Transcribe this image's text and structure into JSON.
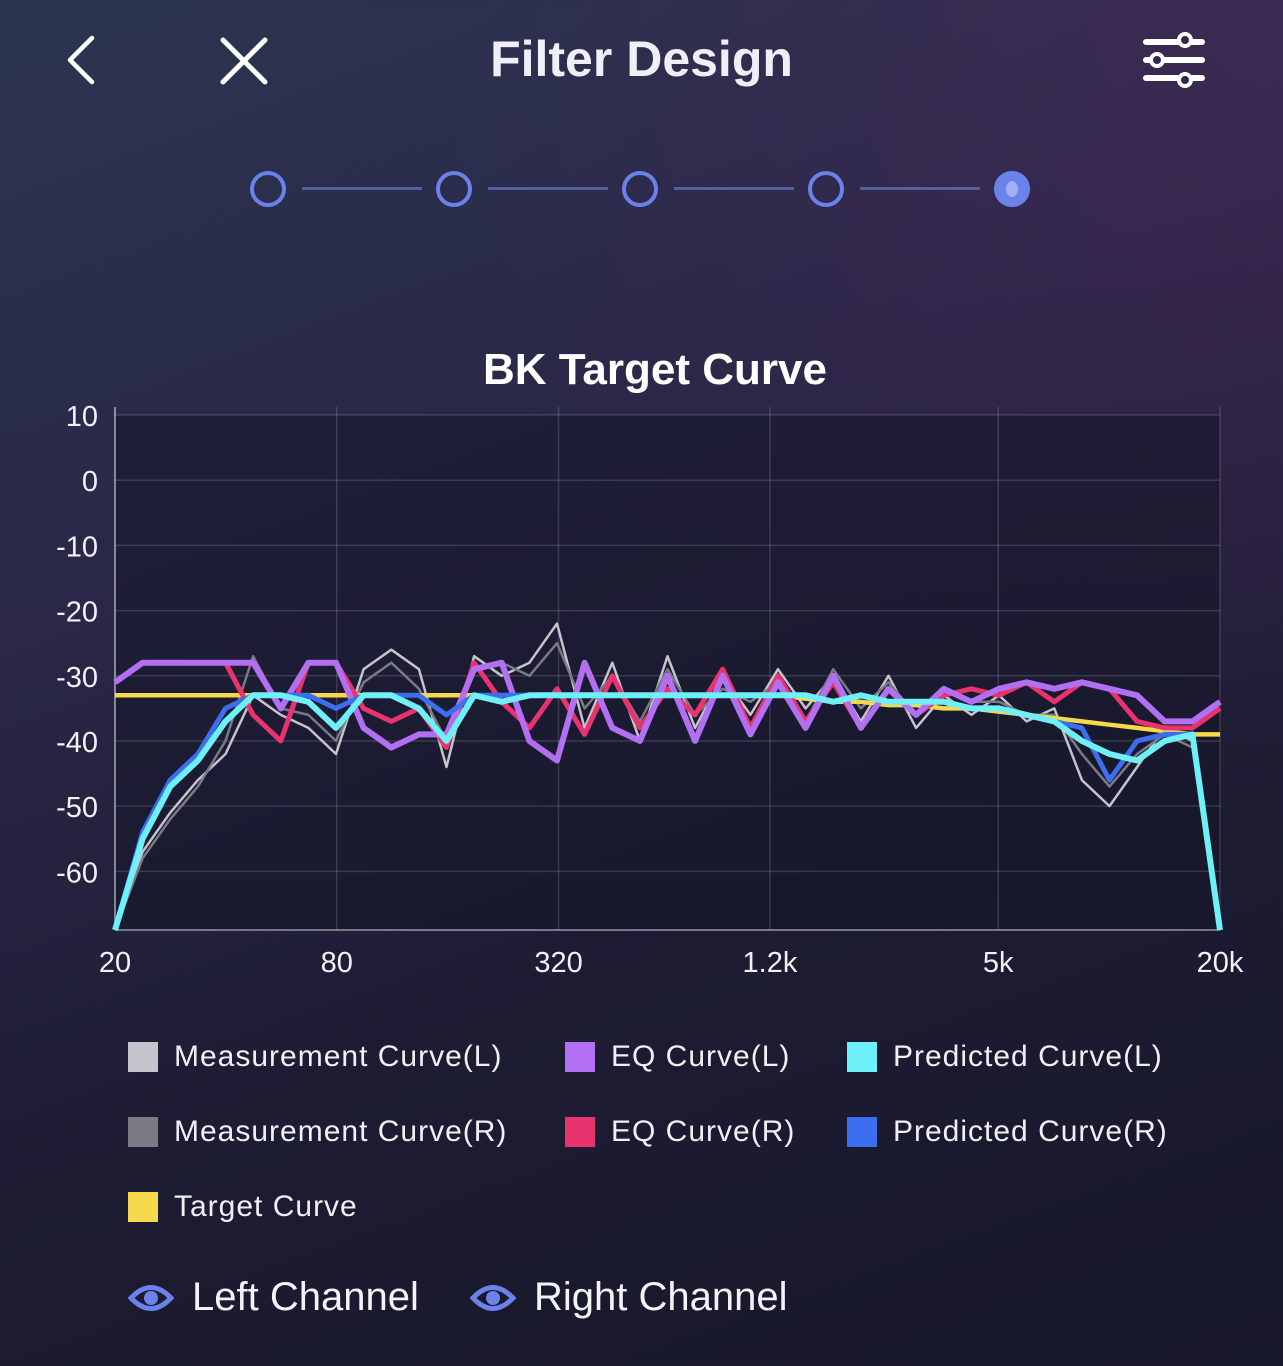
{
  "header": {
    "title": "Filter Design",
    "back_icon": "chevron-left-icon",
    "close_icon": "close-icon",
    "settings_icon": "sliders-icon"
  },
  "stepper": {
    "total_steps": 5,
    "current_step": 5
  },
  "chart_data": {
    "type": "line",
    "title": "BK Target Curve",
    "xscale": "log",
    "xlim": [
      20,
      20000
    ],
    "ylim": [
      -69,
      10
    ],
    "xticks": [
      20,
      80,
      320,
      1200,
      5000,
      20000
    ],
    "xtick_labels": [
      "20",
      "80",
      "320",
      "1.2k",
      "5k",
      "20k"
    ],
    "yticks": [
      10,
      0,
      -10,
      -20,
      -30,
      -40,
      -50,
      -60
    ],
    "ytick_labels": [
      "10",
      "0",
      "-10",
      "-20",
      "-30",
      "-40",
      "-50",
      "-60"
    ],
    "grid": true,
    "x_note": "41 log-spaced frequencies from 20 Hz to 20 kHz",
    "series": [
      {
        "name": "Measurement Curve(L)",
        "color": "#c4c4cc",
        "values": [
          -70,
          -57,
          -51,
          -46,
          -42,
          -33,
          -36,
          -38,
          -42,
          -29,
          -26,
          -29,
          -44,
          -27,
          -30,
          -28,
          -22,
          -38,
          -28,
          -40,
          -27,
          -38,
          -30,
          -36,
          -29,
          -35,
          -30,
          -37,
          -30,
          -38,
          -33,
          -36,
          -33,
          -37,
          -35,
          -46,
          -50,
          -44,
          -38,
          -40,
          -70
        ]
      },
      {
        "name": "Measurement Curve(R)",
        "color": "#7a7a84",
        "values": [
          -70,
          -58,
          -52,
          -47,
          -40,
          -27,
          -35,
          -36,
          -40,
          -31,
          -28,
          -32,
          -40,
          -29,
          -28,
          -30,
          -25,
          -35,
          -30,
          -37,
          -29,
          -36,
          -32,
          -34,
          -31,
          -37,
          -29,
          -35,
          -31,
          -36,
          -32,
          -34,
          -34,
          -36,
          -36,
          -42,
          -47,
          -42,
          -39,
          -41,
          -70
        ]
      },
      {
        "name": "EQ Curve(L)",
        "color": "#b36ff2",
        "values": [
          -31,
          -28,
          -28,
          -28,
          -28,
          -28,
          -35,
          -28,
          -28,
          -38,
          -41,
          -39,
          -39,
          -29,
          -28,
          -40,
          -43,
          -28,
          -38,
          -40,
          -30,
          -40,
          -30,
          -39,
          -31,
          -38,
          -30,
          -38,
          -32,
          -36,
          -32,
          -34,
          -32,
          -31,
          -32,
          -31,
          -32,
          -33,
          -37,
          -37,
          -34
        ]
      },
      {
        "name": "EQ Curve(R)",
        "color": "#e8336f",
        "values": [
          -31,
          -28,
          -28,
          -28,
          -28,
          -36,
          -40,
          -28,
          -28,
          -35,
          -37,
          -35,
          -41,
          -28,
          -34,
          -38,
          -32,
          -39,
          -30,
          -38,
          -32,
          -36,
          -29,
          -38,
          -30,
          -37,
          -31,
          -38,
          -32,
          -36,
          -33,
          -32,
          -33,
          -31,
          -34,
          -31,
          -32,
          -37,
          -38,
          -38,
          -35
        ]
      },
      {
        "name": "Predicted Curve(L)",
        "color": "#6ef0f8",
        "values": [
          -70,
          -55,
          -47,
          -43,
          -37,
          -33,
          -33,
          -34,
          -38,
          -33,
          -33,
          -35,
          -40,
          -33,
          -34,
          -33,
          -33,
          -33,
          -33,
          -33,
          -33,
          -33,
          -33,
          -33,
          -33,
          -33,
          -34,
          -33,
          -34,
          -34,
          -34,
          -35,
          -35,
          -36,
          -37,
          -40,
          -42,
          -43,
          -40,
          -39,
          -70
        ]
      },
      {
        "name": "Predicted Curve(R)",
        "color": "#3d6ef0",
        "values": [
          -70,
          -54,
          -46,
          -42,
          -35,
          -33,
          -33,
          -33,
          -35,
          -33,
          -33,
          -33,
          -36,
          -33,
          -33,
          -33,
          -33,
          -33,
          -33,
          -33,
          -33,
          -33,
          -33,
          -33,
          -33,
          -33,
          -34,
          -33,
          -34,
          -34,
          -34,
          -35,
          -35,
          -36,
          -37,
          -38,
          -46,
          -40,
          -39,
          -39,
          -70
        ]
      },
      {
        "name": "Target Curve",
        "color": "#f6d84c",
        "values": [
          -33,
          -33,
          -33,
          -33,
          -33,
          -33,
          -33,
          -33,
          -33,
          -33,
          -33,
          -33,
          -33,
          -33,
          -33,
          -33,
          -33,
          -33,
          -33,
          -33,
          -33,
          -33,
          -33,
          -33,
          -33,
          -33.5,
          -34,
          -34,
          -34.5,
          -34.5,
          -35,
          -35,
          -35.5,
          -36,
          -36.5,
          -37,
          -37.5,
          -38,
          -38.5,
          -39,
          -39
        ]
      }
    ]
  },
  "legend": [
    {
      "label": "Measurement Curve(L)",
      "color": "#c4c4cc"
    },
    {
      "label": "EQ Curve(L)",
      "color": "#b36ff2"
    },
    {
      "label": "Predicted Curve(L)",
      "color": "#6ef0f8"
    },
    {
      "label": "Measurement Curve(R)",
      "color": "#7a7a84"
    },
    {
      "label": "EQ Curve(R)",
      "color": "#e8336f"
    },
    {
      "label": "Predicted Curve(R)",
      "color": "#3d6ef0"
    },
    {
      "label": "Target Curve",
      "color": "#f6d84c"
    }
  ],
  "channels": {
    "left_label": "Left Channel",
    "right_label": "Right Channel",
    "icon": "eye-icon",
    "accent": "#6a82ea"
  }
}
